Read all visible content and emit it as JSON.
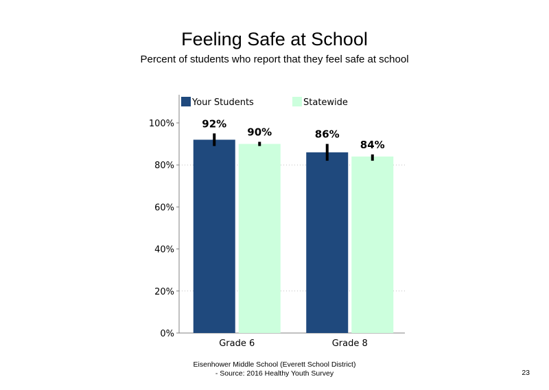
{
  "page": {
    "footer_line1": "Eisenhower Middle School (Everett School District)",
    "footer_line2": "- Source: 2016 Healthy Youth Survey",
    "page_number": "23"
  },
  "chart_data": {
    "type": "bar",
    "title": "Feeling Safe at School",
    "subtitle": "Percent of students who report that they feel safe at school",
    "categories": [
      "Grade 6",
      "Grade 8"
    ],
    "series": [
      {
        "name": "Your Students",
        "values": [
          92,
          86
        ],
        "labels": [
          "92%",
          "86%"
        ],
        "error": [
          [
            89,
            95
          ],
          [
            82,
            90
          ]
        ],
        "color": "#1f497d"
      },
      {
        "name": "Statewide",
        "values": [
          90,
          84
        ],
        "labels": [
          "90%",
          "84%"
        ],
        "error": [
          [
            89,
            91
          ],
          [
            82,
            85
          ]
        ],
        "color": "#ccffdd"
      }
    ],
    "ylim": [
      0,
      112
    ],
    "yticks": [
      0,
      20,
      40,
      60,
      80,
      100
    ],
    "ytick_labels": [
      "0%",
      "20%",
      "40%",
      "60%",
      "80%",
      "100%"
    ],
    "xlabel": "",
    "ylabel": "",
    "grid": "dotted horizontal at 20% and 80%",
    "legend": "top-left"
  }
}
